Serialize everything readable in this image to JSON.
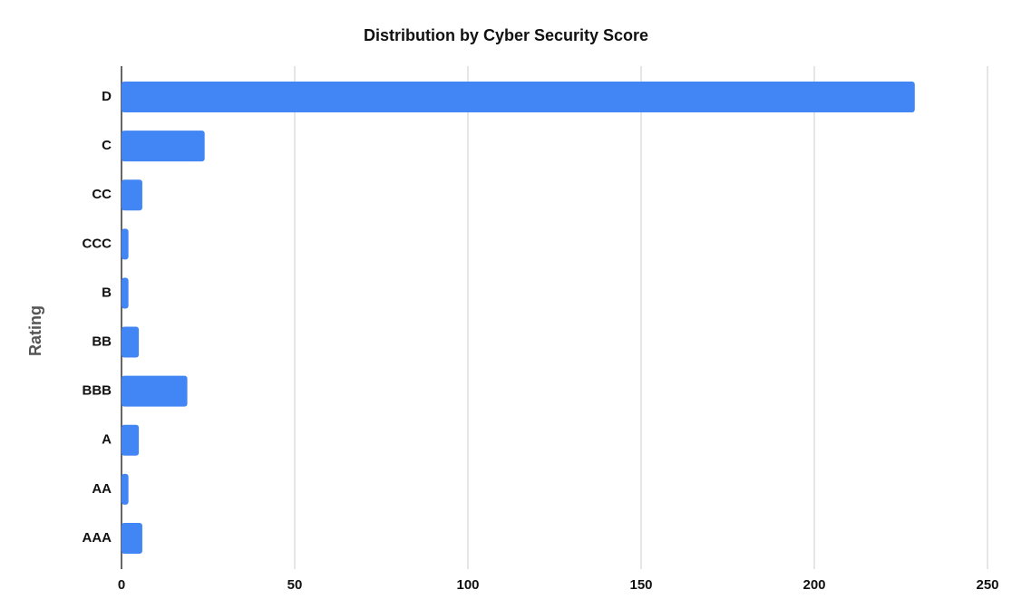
{
  "chart_data": {
    "type": "bar",
    "orientation": "horizontal",
    "title": "Distribution by Cyber Security Score",
    "y_label": "Rating",
    "categories": [
      "D",
      "C",
      "CC",
      "CCC",
      "B",
      "BB",
      "BBB",
      "A",
      "AA",
      "AAA"
    ],
    "values": [
      229,
      24,
      6,
      2,
      2,
      5,
      19,
      5,
      2,
      6
    ],
    "color": "#4285f4",
    "xlim": [
      0,
      250
    ],
    "xticks": [
      0,
      50,
      100,
      150,
      200,
      250
    ],
    "grid": true
  }
}
